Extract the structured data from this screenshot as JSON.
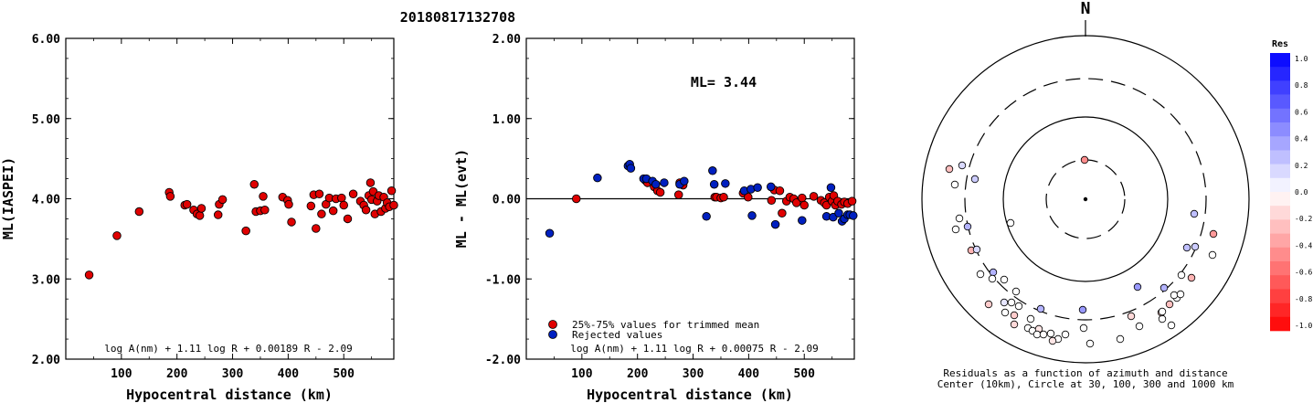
{
  "title": "20180817132708",
  "left_chart": {
    "type": "scatter",
    "ylabel": "ML(IASPEI)",
    "xlabel": "Hypocentral distance (km)",
    "xlim": [
      0,
      590
    ],
    "ylim": [
      2.0,
      6.0
    ],
    "yticks": [
      "2.00",
      "3.00",
      "4.00",
      "5.00",
      "6.00"
    ],
    "xticks": [
      "100",
      "200",
      "300",
      "400",
      "500"
    ],
    "formula": "log A(nm) + 1.11 log R + 0.00189 R - 2.09",
    "series": [
      {
        "color": "#e00000",
        "points": [
          [
            42,
            3.05
          ],
          [
            92,
            3.54
          ],
          [
            132,
            3.84
          ],
          [
            186,
            4.08
          ],
          [
            188,
            4.03
          ],
          [
            214,
            3.92
          ],
          [
            218,
            3.93
          ],
          [
            230,
            3.86
          ],
          [
            236,
            3.81
          ],
          [
            241,
            3.79
          ],
          [
            244,
            3.88
          ],
          [
            274,
            3.8
          ],
          [
            276,
            3.93
          ],
          [
            282,
            3.99
          ],
          [
            324,
            3.6
          ],
          [
            339,
            4.18
          ],
          [
            342,
            3.84
          ],
          [
            350,
            3.85
          ],
          [
            355,
            4.03
          ],
          [
            358,
            3.86
          ],
          [
            390,
            4.02
          ],
          [
            399,
            3.98
          ],
          [
            401,
            3.93
          ],
          [
            406,
            3.71
          ],
          [
            441,
            3.91
          ],
          [
            446,
            4.05
          ],
          [
            450,
            3.63
          ],
          [
            456,
            4.06
          ],
          [
            460,
            3.81
          ],
          [
            468,
            3.93
          ],
          [
            474,
            4.01
          ],
          [
            481,
            3.85
          ],
          [
            486,
            4.0
          ],
          [
            496,
            4.01
          ],
          [
            500,
            3.92
          ],
          [
            507,
            3.75
          ],
          [
            517,
            4.06
          ],
          [
            530,
            3.97
          ],
          [
            536,
            3.92
          ],
          [
            540,
            3.86
          ],
          [
            545,
            4.04
          ],
          [
            548,
            4.2
          ],
          [
            550,
            3.99
          ],
          [
            553,
            4.09
          ],
          [
            556,
            3.81
          ],
          [
            560,
            3.97
          ],
          [
            563,
            4.04
          ],
          [
            567,
            3.84
          ],
          [
            572,
            4.02
          ],
          [
            575,
            3.88
          ],
          [
            578,
            3.95
          ],
          [
            582,
            3.9
          ],
          [
            586,
            4.1
          ],
          [
            590,
            3.92
          ]
        ]
      }
    ]
  },
  "mid_chart": {
    "type": "scatter",
    "ylabel": "ML - ML(evt)",
    "xlabel": "Hypocentral distance (km)",
    "xlim": [
      0,
      590
    ],
    "ylim": [
      -2.0,
      2.0
    ],
    "yticks": [
      "-2.00",
      "-1.00",
      "0.00",
      "1.00",
      "2.00"
    ],
    "xticks": [
      "100",
      "200",
      "300",
      "400",
      "500"
    ],
    "annotation": "ML= 3.44",
    "formula": "log A(nm) + 1.11 log R + 0.00075 R - 2.09",
    "legend": [
      {
        "label": "25%-75% values for trimmed mean",
        "color": "#e00000"
      },
      {
        "label": "Rejected values",
        "color": "#0020c0"
      }
    ],
    "series": [
      {
        "name": "25%-75% values for trimmed mean",
        "color": "#e00000",
        "points": [
          [
            90,
            0.0
          ],
          [
            214,
            0.23
          ],
          [
            218,
            0.2
          ],
          [
            230,
            0.15
          ],
          [
            236,
            0.1
          ],
          [
            241,
            0.08
          ],
          [
            274,
            0.05
          ],
          [
            276,
            0.2
          ],
          [
            282,
            0.17
          ],
          [
            339,
            0.02
          ],
          [
            342,
            0.02
          ],
          [
            350,
            0.01
          ],
          [
            355,
            0.02
          ],
          [
            390,
            0.07
          ],
          [
            399,
            0.02
          ],
          [
            441,
            -0.02
          ],
          [
            446,
            0.11
          ],
          [
            456,
            0.1
          ],
          [
            460,
            -0.18
          ],
          [
            468,
            -0.03
          ],
          [
            474,
            0.02
          ],
          [
            481,
            0.0
          ],
          [
            486,
            -0.05
          ],
          [
            496,
            0.01
          ],
          [
            500,
            -0.08
          ],
          [
            517,
            0.03
          ],
          [
            530,
            -0.02
          ],
          [
            536,
            -0.05
          ],
          [
            540,
            -0.08
          ],
          [
            545,
            0.02
          ],
          [
            550,
            -0.03
          ],
          [
            553,
            0.04
          ],
          [
            556,
            -0.08
          ],
          [
            560,
            -0.03
          ],
          [
            567,
            -0.07
          ],
          [
            572,
            -0.04
          ],
          [
            578,
            -0.06
          ],
          [
            586,
            -0.03
          ]
        ]
      },
      {
        "name": "Rejected values",
        "color": "#0020c0",
        "points": [
          [
            42,
            -0.43
          ],
          [
            128,
            0.26
          ],
          [
            183,
            0.41
          ],
          [
            186,
            0.43
          ],
          [
            188,
            0.38
          ],
          [
            211,
            0.25
          ],
          [
            216,
            0.25
          ],
          [
            227,
            0.22
          ],
          [
            233,
            0.18
          ],
          [
            248,
            0.2
          ],
          [
            276,
            0.18
          ],
          [
            284,
            0.22
          ],
          [
            324,
            -0.22
          ],
          [
            335,
            0.35
          ],
          [
            338,
            0.18
          ],
          [
            358,
            0.19
          ],
          [
            392,
            0.1
          ],
          [
            404,
            0.12
          ],
          [
            406,
            -0.21
          ],
          [
            416,
            0.14
          ],
          [
            440,
            0.15
          ],
          [
            448,
            -0.32
          ],
          [
            496,
            -0.27
          ],
          [
            540,
            -0.22
          ],
          [
            548,
            0.14
          ],
          [
            552,
            -0.23
          ],
          [
            562,
            -0.18
          ],
          [
            568,
            -0.28
          ],
          [
            572,
            -0.25
          ],
          [
            578,
            -0.2
          ],
          [
            582,
            -0.2
          ],
          [
            588,
            -0.21
          ]
        ]
      }
    ]
  },
  "polar": {
    "north_label": "N",
    "caption_line1": "Residuals as a function of azimuth and distance",
    "caption_line2": "Center (10km), Circle at 30, 100, 300 and 1000 km",
    "colorbar_title": "Res",
    "colorbar_ticks": [
      "1.0",
      "0.8",
      "0.6",
      "0.4",
      "0.2",
      "0.0",
      "-0.2",
      "-0.4",
      "-0.6",
      "-0.8",
      "-1.0"
    ],
    "positive_color": "#0000ff",
    "negative_color": "#ff0000",
    "stations": [
      {
        "dx": -1,
        "dy": -43,
        "res": -0.45
      },
      {
        "dx": -149,
        "dy": -33,
        "res": -0.25
      },
      {
        "dx": -135,
        "dy": -37,
        "res": 0.15
      },
      {
        "dx": -143,
        "dy": -16,
        "res": 0.0
      },
      {
        "dx": -121,
        "dy": -22,
        "res": 0.2
      },
      {
        "dx": -138,
        "dy": 21,
        "res": 0.0
      },
      {
        "dx": -142,
        "dy": 33,
        "res": 0.0
      },
      {
        "dx": -82,
        "dy": 26,
        "res": 0.0
      },
      {
        "dx": -129,
        "dy": 30,
        "res": 0.3
      },
      {
        "dx": -125,
        "dy": 56,
        "res": -0.3
      },
      {
        "dx": -119,
        "dy": 55,
        "res": 0.15
      },
      {
        "dx": -101,
        "dy": 80,
        "res": 0.3
      },
      {
        "dx": -89,
        "dy": 88,
        "res": 0.0
      },
      {
        "dx": -102,
        "dy": 87,
        "res": 0.0
      },
      {
        "dx": -115,
        "dy": 82,
        "res": 0.0
      },
      {
        "dx": -76,
        "dy": 101,
        "res": 0.0
      },
      {
        "dx": -89,
        "dy": 113,
        "res": 0.1
      },
      {
        "dx": -81,
        "dy": 113,
        "res": 0.0
      },
      {
        "dx": -106,
        "dy": 115,
        "res": -0.2
      },
      {
        "dx": -73,
        "dy": 117,
        "res": 0.0
      },
      {
        "dx": -88,
        "dy": 124,
        "res": 0.0
      },
      {
        "dx": -78,
        "dy": 127,
        "res": -0.2
      },
      {
        "dx": -60,
        "dy": 131,
        "res": 0.0
      },
      {
        "dx": -78,
        "dy": 137,
        "res": -0.15
      },
      {
        "dx": -63,
        "dy": 141,
        "res": 0.0
      },
      {
        "dx": -58,
        "dy": 144,
        "res": 0.0
      },
      {
        "dx": -51,
        "dy": 142,
        "res": -0.1
      },
      {
        "dx": -53,
        "dy": 148,
        "res": 0.0
      },
      {
        "dx": -46,
        "dy": 148,
        "res": 0.0
      },
      {
        "dx": -38,
        "dy": 147,
        "res": 0.0
      },
      {
        "dx": -30,
        "dy": 153,
        "res": 0.0
      },
      {
        "dx": -36,
        "dy": 155,
        "res": -0.1
      },
      {
        "dx": -22,
        "dy": 148,
        "res": 0.0
      },
      {
        "dx": -2,
        "dy": 141,
        "res": 0.0
      },
      {
        "dx": -49,
        "dy": 120,
        "res": 0.3
      },
      {
        "dx": -3,
        "dy": 121,
        "res": 0.4
      },
      {
        "dx": 5,
        "dy": 158,
        "res": 0.0
      },
      {
        "dx": 38,
        "dy": 153,
        "res": 0.0
      },
      {
        "dx": 59,
        "dy": 139,
        "res": 0.0
      },
      {
        "dx": 84,
        "dy": 131,
        "res": 0.0
      },
      {
        "dx": 94,
        "dy": 138,
        "res": 0.0
      },
      {
        "dx": 50,
        "dy": 128,
        "res": -0.15
      },
      {
        "dx": 83,
        "dy": 124,
        "res": -0.2
      },
      {
        "dx": 84,
        "dy": 123,
        "res": 0.0
      },
      {
        "dx": 57,
        "dy": 96,
        "res": 0.4
      },
      {
        "dx": 86,
        "dy": 97,
        "res": 0.3
      },
      {
        "dx": 100,
        "dy": 108,
        "res": 0.0
      },
      {
        "dx": 97,
        "dy": 105,
        "res": 0.0
      },
      {
        "dx": 104,
        "dy": 104,
        "res": 0.0
      },
      {
        "dx": 92,
        "dy": 115,
        "res": -0.25
      },
      {
        "dx": 105,
        "dy": 83,
        "res": 0.0
      },
      {
        "dx": 116,
        "dy": 86,
        "res": -0.3
      },
      {
        "dx": 119,
        "dy": 16,
        "res": 0.25
      },
      {
        "dx": 111,
        "dy": 53,
        "res": 0.25
      },
      {
        "dx": 120,
        "dy": 52,
        "res": 0.2
      },
      {
        "dx": 140,
        "dy": 38,
        "res": -0.4
      },
      {
        "dx": 139,
        "dy": 61,
        "res": 0.0
      }
    ]
  }
}
